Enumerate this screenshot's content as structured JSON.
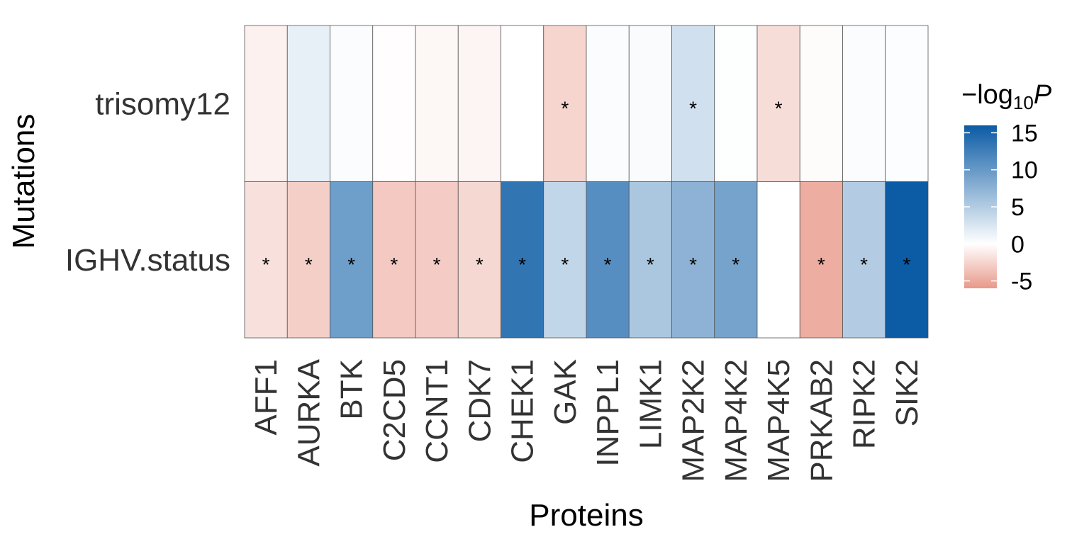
{
  "chart_data": {
    "type": "heatmap",
    "xlabel": "Proteins",
    "ylabel": "Mutations",
    "rows": [
      "trisomy12",
      "IGHV.status"
    ],
    "columns": [
      "AFF1",
      "AURKA",
      "BTK",
      "C2CD5",
      "CCNT1",
      "CDK7",
      "CHEK1",
      "GAK",
      "INPPL1",
      "LIMK1",
      "MAP2K2",
      "MAP4K2",
      "MAP4K5",
      "PRKAB2",
      "RIPK2",
      "SIK2"
    ],
    "values": [
      [
        -0.8,
        1.5,
        0.3,
        -0.1,
        -0.5,
        -0.6,
        0.0,
        -2.5,
        0.3,
        0.4,
        3.0,
        0.1,
        -2.0,
        -0.2,
        0.3,
        0.2
      ],
      [
        -1.8,
        -2.8,
        9.5,
        -3.2,
        -3.0,
        -2.3,
        13.5,
        4.0,
        11.0,
        5.5,
        7.5,
        9.0,
        0.0,
        -4.8,
        5.0,
        16.0
      ]
    ],
    "significant": [
      [
        false,
        false,
        false,
        false,
        false,
        false,
        false,
        true,
        false,
        false,
        true,
        false,
        true,
        false,
        false,
        false
      ],
      [
        true,
        true,
        true,
        true,
        true,
        true,
        true,
        true,
        true,
        true,
        true,
        true,
        false,
        true,
        true,
        true
      ]
    ],
    "significance_marker": "*",
    "colorbar": {
      "title_prefix": "−log",
      "title_sub": "10",
      "title_var": "P",
      "range": [
        -6,
        16
      ],
      "ticks": [
        15,
        10,
        5,
        0,
        -5
      ],
      "tick_labels": [
        "15",
        "10",
        "5",
        "0",
        "-5"
      ],
      "color_max": "#0B5BA5",
      "color_mid": "#FFFFFF",
      "color_min": "#E8998A"
    },
    "grid": true,
    "legend_position": "right"
  }
}
